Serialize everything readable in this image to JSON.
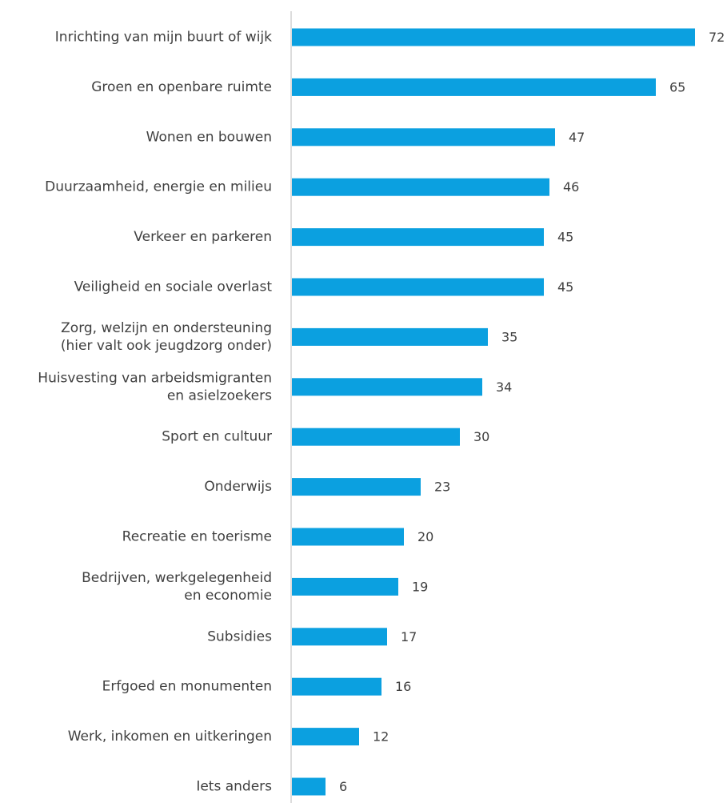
{
  "chart_data": {
    "type": "bar",
    "orientation": "horizontal",
    "title": "",
    "xlabel": "",
    "ylabel": "",
    "grid": false,
    "legend": "none",
    "bar_color": "#0BA0E0",
    "axis_color": "#D0D0D0",
    "text_color": "#404040",
    "xlim": [
      0,
      72
    ],
    "categories": [
      [
        "Inrichting van mijn buurt of wijk"
      ],
      [
        "Groen en openbare ruimte"
      ],
      [
        "Wonen en bouwen"
      ],
      [
        "Duurzaamheid, energie en milieu"
      ],
      [
        "Verkeer en parkeren"
      ],
      [
        "Veiligheid en sociale overlast"
      ],
      [
        "Zorg, welzijn en ondersteuning",
        "(hier valt ook jeugdzorg onder)"
      ],
      [
        "Huisvesting van arbeidsmigranten",
        "en asielzoekers"
      ],
      [
        "Sport en cultuur"
      ],
      [
        "Onderwijs"
      ],
      [
        "Recreatie en toerisme"
      ],
      [
        "Bedrijven, werkgelegenheid",
        "en economie"
      ],
      [
        "Subsidies"
      ],
      [
        "Erfgoed en monumenten"
      ],
      [
        "Werk, inkomen en uitkeringen"
      ],
      [
        "Iets anders"
      ]
    ],
    "values": [
      72,
      65,
      47,
      46,
      45,
      45,
      35,
      34,
      30,
      23,
      20,
      19,
      17,
      16,
      12,
      6
    ]
  }
}
